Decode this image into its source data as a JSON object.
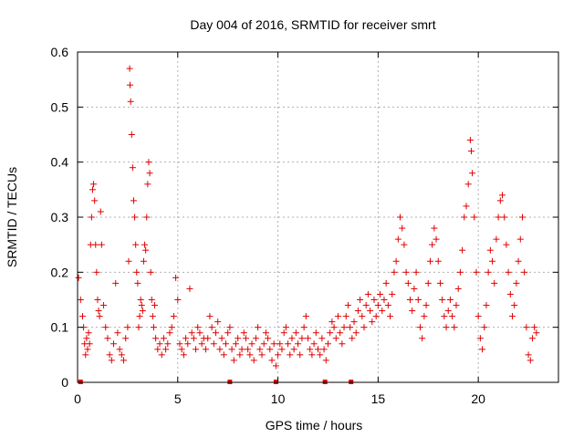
{
  "chart_data": {
    "type": "scatter",
    "title": "Day 004 of 2016, SRMTID for receiver smrt",
    "xlabel": "GPS time / hours",
    "ylabel": "SRMTID / TECUs",
    "xlim": [
      0,
      24
    ],
    "ylim": [
      0,
      0.6
    ],
    "x_ticks": [
      0,
      5,
      10,
      15,
      20
    ],
    "x_tick_labels": [
      "0",
      "5",
      "10",
      "15",
      "20"
    ],
    "y_ticks": [
      0,
      0.1,
      0.2,
      0.3,
      0.4,
      0.5,
      0.6
    ],
    "y_tick_labels": [
      "0",
      "0.1",
      "0.2",
      "0.3",
      "0.4",
      "0.5",
      "0.6"
    ],
    "grid": true,
    "marker": "+",
    "color": "#e00000",
    "series": [
      {
        "name": "SRMTID",
        "points": [
          [
            0.05,
            0.19
          ],
          [
            0.15,
            0.15
          ],
          [
            0.25,
            0.12
          ],
          [
            0.3,
            0.1
          ],
          [
            0.35,
            0.07
          ],
          [
            0.4,
            0.05
          ],
          [
            0.45,
            0.08
          ],
          [
            0.5,
            0.06
          ],
          [
            0.55,
            0.09
          ],
          [
            0.6,
            0.07
          ],
          [
            0.65,
            0.25
          ],
          [
            0.7,
            0.3
          ],
          [
            0.75,
            0.35
          ],
          [
            0.8,
            0.36
          ],
          [
            0.85,
            0.33
          ],
          [
            0.9,
            0.25
          ],
          [
            0.95,
            0.2
          ],
          [
            1.0,
            0.15
          ],
          [
            1.05,
            0.13
          ],
          [
            1.1,
            0.12
          ],
          [
            1.15,
            0.31
          ],
          [
            1.2,
            0.25
          ],
          [
            1.3,
            0.14
          ],
          [
            1.4,
            0.1
          ],
          [
            1.5,
            0.08
          ],
          [
            1.6,
            0.05
          ],
          [
            1.7,
            0.04
          ],
          [
            1.8,
            0.07
          ],
          [
            1.9,
            0.18
          ],
          [
            2.0,
            0.09
          ],
          [
            2.1,
            0.06
          ],
          [
            2.2,
            0.05
          ],
          [
            2.3,
            0.04
          ],
          [
            2.4,
            0.08
          ],
          [
            2.5,
            0.1
          ],
          [
            2.55,
            0.22
          ],
          [
            2.6,
            0.57
          ],
          [
            2.62,
            0.54
          ],
          [
            2.65,
            0.51
          ],
          [
            2.7,
            0.45
          ],
          [
            2.75,
            0.39
          ],
          [
            2.8,
            0.33
          ],
          [
            2.85,
            0.3
          ],
          [
            2.9,
            0.25
          ],
          [
            2.95,
            0.2
          ],
          [
            3.0,
            0.18
          ],
          [
            3.05,
            0.1
          ],
          [
            3.1,
            0.12
          ],
          [
            3.15,
            0.15
          ],
          [
            3.2,
            0.14
          ],
          [
            3.25,
            0.13
          ],
          [
            3.3,
            0.22
          ],
          [
            3.35,
            0.25
          ],
          [
            3.4,
            0.24
          ],
          [
            3.45,
            0.3
          ],
          [
            3.5,
            0.36
          ],
          [
            3.55,
            0.4
          ],
          [
            3.6,
            0.38
          ],
          [
            3.65,
            0.2
          ],
          [
            3.7,
            0.15
          ],
          [
            3.75,
            0.12
          ],
          [
            3.8,
            0.1
          ],
          [
            3.85,
            0.14
          ],
          [
            3.9,
            0.08
          ],
          [
            4.0,
            0.06
          ],
          [
            4.1,
            0.07
          ],
          [
            4.2,
            0.05
          ],
          [
            4.3,
            0.08
          ],
          [
            4.4,
            0.06
          ],
          [
            4.5,
            0.07
          ],
          [
            4.6,
            0.09
          ],
          [
            4.7,
            0.1
          ],
          [
            4.8,
            0.12
          ],
          [
            4.9,
            0.19
          ],
          [
            5.0,
            0.15
          ],
          [
            5.1,
            0.07
          ],
          [
            5.2,
            0.06
          ],
          [
            5.3,
            0.05
          ],
          [
            5.4,
            0.08
          ],
          [
            5.5,
            0.07
          ],
          [
            5.6,
            0.17
          ],
          [
            5.7,
            0.09
          ],
          [
            5.8,
            0.08
          ],
          [
            5.9,
            0.06
          ],
          [
            6.0,
            0.1
          ],
          [
            6.1,
            0.09
          ],
          [
            6.2,
            0.07
          ],
          [
            6.3,
            0.08
          ],
          [
            6.4,
            0.06
          ],
          [
            6.5,
            0.08
          ],
          [
            6.6,
            0.12
          ],
          [
            6.7,
            0.1
          ],
          [
            6.8,
            0.07
          ],
          [
            6.9,
            0.09
          ],
          [
            7.0,
            0.11
          ],
          [
            7.1,
            0.06
          ],
          [
            7.2,
            0.08
          ],
          [
            7.3,
            0.05
          ],
          [
            7.4,
            0.07
          ],
          [
            7.5,
            0.09
          ],
          [
            7.6,
            0.1
          ],
          [
            7.7,
            0.06
          ],
          [
            7.8,
            0.04
          ],
          [
            7.9,
            0.07
          ],
          [
            8.0,
            0.08
          ],
          [
            8.1,
            0.05
          ],
          [
            8.2,
            0.06
          ],
          [
            8.3,
            0.09
          ],
          [
            8.4,
            0.08
          ],
          [
            8.5,
            0.06
          ],
          [
            8.6,
            0.05
          ],
          [
            8.7,
            0.07
          ],
          [
            8.8,
            0.04
          ],
          [
            8.9,
            0.08
          ],
          [
            9.0,
            0.1
          ],
          [
            9.1,
            0.06
          ],
          [
            9.2,
            0.05
          ],
          [
            9.3,
            0.07
          ],
          [
            9.4,
            0.09
          ],
          [
            9.5,
            0.08
          ],
          [
            9.6,
            0.06
          ],
          [
            9.7,
            0.04
          ],
          [
            9.8,
            0.07
          ],
          [
            9.9,
            0.03
          ],
          [
            10.0,
            0.05
          ],
          [
            10.1,
            0.07
          ],
          [
            10.2,
            0.06
          ],
          [
            10.3,
            0.09
          ],
          [
            10.4,
            0.1
          ],
          [
            10.5,
            0.07
          ],
          [
            10.6,
            0.05
          ],
          [
            10.7,
            0.08
          ],
          [
            10.8,
            0.06
          ],
          [
            10.9,
            0.09
          ],
          [
            11.0,
            0.07
          ],
          [
            11.1,
            0.05
          ],
          [
            11.2,
            0.08
          ],
          [
            11.3,
            0.1
          ],
          [
            11.4,
            0.12
          ],
          [
            11.5,
            0.08
          ],
          [
            11.6,
            0.06
          ],
          [
            11.7,
            0.05
          ],
          [
            11.8,
            0.07
          ],
          [
            11.9,
            0.09
          ],
          [
            12.0,
            0.06
          ],
          [
            12.1,
            0.05
          ],
          [
            12.2,
            0.08
          ],
          [
            12.3,
            0.06
          ],
          [
            12.4,
            0.04
          ],
          [
            12.5,
            0.07
          ],
          [
            12.6,
            0.09
          ],
          [
            12.7,
            0.11
          ],
          [
            12.8,
            0.1
          ],
          [
            12.9,
            0.08
          ],
          [
            13.0,
            0.12
          ],
          [
            13.1,
            0.09
          ],
          [
            13.2,
            0.07
          ],
          [
            13.3,
            0.1
          ],
          [
            13.4,
            0.12
          ],
          [
            13.5,
            0.14
          ],
          [
            13.6,
            0.1
          ],
          [
            13.7,
            0.08
          ],
          [
            13.8,
            0.11
          ],
          [
            13.9,
            0.09
          ],
          [
            14.0,
            0.13
          ],
          [
            14.1,
            0.15
          ],
          [
            14.2,
            0.12
          ],
          [
            14.3,
            0.1
          ],
          [
            14.4,
            0.14
          ],
          [
            14.5,
            0.16
          ],
          [
            14.6,
            0.13
          ],
          [
            14.7,
            0.11
          ],
          [
            14.8,
            0.15
          ],
          [
            14.9,
            0.12
          ],
          [
            15.0,
            0.14
          ],
          [
            15.1,
            0.16
          ],
          [
            15.2,
            0.13
          ],
          [
            15.3,
            0.15
          ],
          [
            15.4,
            0.18
          ],
          [
            15.5,
            0.14
          ],
          [
            15.6,
            0.12
          ],
          [
            15.7,
            0.16
          ],
          [
            15.8,
            0.2
          ],
          [
            15.9,
            0.22
          ],
          [
            16.0,
            0.26
          ],
          [
            16.1,
            0.3
          ],
          [
            16.2,
            0.28
          ],
          [
            16.3,
            0.25
          ],
          [
            16.4,
            0.2
          ],
          [
            16.5,
            0.18
          ],
          [
            16.6,
            0.15
          ],
          [
            16.7,
            0.13
          ],
          [
            16.8,
            0.17
          ],
          [
            16.9,
            0.2
          ],
          [
            17.0,
            0.15
          ],
          [
            17.1,
            0.1
          ],
          [
            17.2,
            0.08
          ],
          [
            17.3,
            0.12
          ],
          [
            17.4,
            0.14
          ],
          [
            17.5,
            0.18
          ],
          [
            17.6,
            0.22
          ],
          [
            17.7,
            0.25
          ],
          [
            17.8,
            0.28
          ],
          [
            17.9,
            0.26
          ],
          [
            18.0,
            0.22
          ],
          [
            18.1,
            0.18
          ],
          [
            18.2,
            0.15
          ],
          [
            18.3,
            0.12
          ],
          [
            18.4,
            0.1
          ],
          [
            18.5,
            0.13
          ],
          [
            18.6,
            0.15
          ],
          [
            18.7,
            0.12
          ],
          [
            18.8,
            0.1
          ],
          [
            18.9,
            0.14
          ],
          [
            19.0,
            0.17
          ],
          [
            19.1,
            0.2
          ],
          [
            19.2,
            0.24
          ],
          [
            19.3,
            0.3
          ],
          [
            19.4,
            0.32
          ],
          [
            19.5,
            0.36
          ],
          [
            19.6,
            0.44
          ],
          [
            19.65,
            0.42
          ],
          [
            19.7,
            0.38
          ],
          [
            19.8,
            0.3
          ],
          [
            19.9,
            0.2
          ],
          [
            20.0,
            0.12
          ],
          [
            20.1,
            0.08
          ],
          [
            20.2,
            0.06
          ],
          [
            20.3,
            0.1
          ],
          [
            20.4,
            0.14
          ],
          [
            20.5,
            0.2
          ],
          [
            20.6,
            0.24
          ],
          [
            20.7,
            0.22
          ],
          [
            20.8,
            0.18
          ],
          [
            20.9,
            0.26
          ],
          [
            21.0,
            0.3
          ],
          [
            21.1,
            0.33
          ],
          [
            21.2,
            0.34
          ],
          [
            21.3,
            0.3
          ],
          [
            21.4,
            0.25
          ],
          [
            21.5,
            0.2
          ],
          [
            21.6,
            0.16
          ],
          [
            21.7,
            0.12
          ],
          [
            21.8,
            0.14
          ],
          [
            21.9,
            0.18
          ],
          [
            22.0,
            0.22
          ],
          [
            22.1,
            0.26
          ],
          [
            22.2,
            0.3
          ],
          [
            22.3,
            0.2
          ],
          [
            22.4,
            0.1
          ],
          [
            22.5,
            0.05
          ],
          [
            22.6,
            0.04
          ],
          [
            22.7,
            0.08
          ],
          [
            22.8,
            0.1
          ],
          [
            22.9,
            0.09
          ]
        ]
      }
    ],
    "baseline_marks_x": [
      0.15,
      7.6,
      9.9,
      12.35,
      13.65
    ]
  }
}
